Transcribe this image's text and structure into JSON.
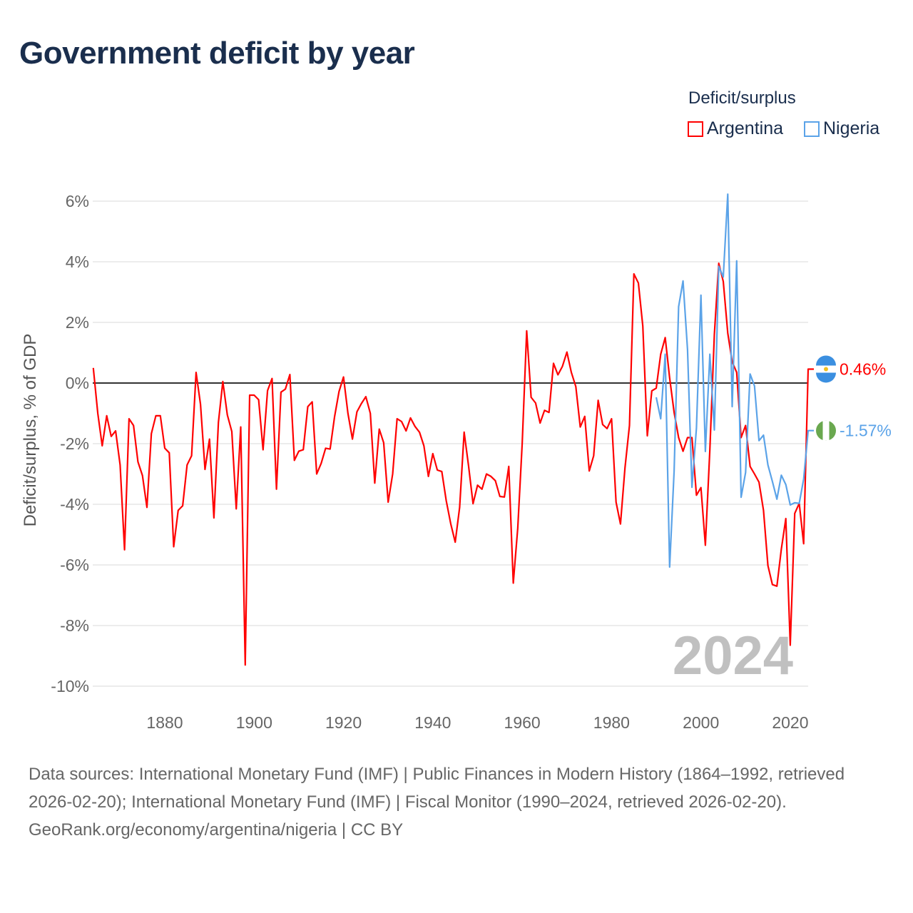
{
  "chart_data": {
    "type": "line",
    "title": "Government deficit by year",
    "xlabel": "",
    "ylabel": "Deficit/surplus, % of GDP",
    "xlim": [
      1864,
      2024
    ],
    "ylim": [
      -10,
      6
    ],
    "x_ticks": [
      1880,
      1900,
      1920,
      1940,
      1960,
      1980,
      2000,
      2020
    ],
    "y_ticks": [
      6,
      4,
      2,
      0,
      -2,
      -4,
      -6,
      -8,
      -10
    ],
    "y_tick_labels": [
      "6%",
      "4%",
      "2%",
      "0%",
      "-2%",
      "-4%",
      "-6%",
      "-8%",
      "-10%"
    ],
    "grid": true,
    "legend_title": "Deficit/surplus",
    "legend_position": "top-right",
    "year_watermark": "2024",
    "series": [
      {
        "name": "Argentina",
        "color": "#ff0000",
        "start_year": 1864,
        "end_label": "0.46%",
        "values": [
          0.5,
          -1.0,
          -2.07,
          -1.08,
          -1.76,
          -1.58,
          -2.7,
          -5.5,
          -1.18,
          -1.4,
          -2.6,
          -3.05,
          -4.1,
          -1.67,
          -1.08,
          -1.08,
          -2.15,
          -2.3,
          -5.4,
          -4.2,
          -4.05,
          -2.7,
          -2.4,
          0.35,
          -0.7,
          -2.85,
          -1.85,
          -4.45,
          -1.3,
          0.05,
          -1.05,
          -1.6,
          -4.15,
          -1.45,
          -9.3,
          -0.4,
          -0.4,
          -0.55,
          -2.2,
          -0.25,
          0.15,
          -3.5,
          -0.3,
          -0.2,
          0.28,
          -2.55,
          -2.25,
          -2.2,
          -0.78,
          -0.62,
          -3.0,
          -2.65,
          -2.15,
          -2.18,
          -1.12,
          -0.28,
          0.2,
          -1.0,
          -1.85,
          -0.95,
          -0.68,
          -0.45,
          -1.0,
          -3.3,
          -1.52,
          -1.97,
          -3.93,
          -3.0,
          -1.18,
          -1.27,
          -1.58,
          -1.15,
          -1.43,
          -1.62,
          -2.07,
          -3.08,
          -2.33,
          -2.87,
          -2.92,
          -3.88,
          -4.64,
          -5.25,
          -4.1,
          -1.62,
          -2.75,
          -3.98,
          -3.37,
          -3.5,
          -3.0,
          -3.08,
          -3.22,
          -3.74,
          -3.76,
          -2.75,
          -6.6,
          -4.78,
          -2.0,
          1.72,
          -0.47,
          -0.66,
          -1.32,
          -0.9,
          -0.97,
          0.65,
          0.27,
          0.55,
          1.02,
          0.35,
          -0.12,
          -1.45,
          -1.1,
          -2.9,
          -2.4,
          -0.57,
          -1.37,
          -1.5,
          -1.18,
          -3.93,
          -4.65,
          -2.8,
          -1.4,
          3.6,
          3.3,
          1.88,
          -1.74,
          -0.26,
          -0.17,
          0.95,
          1.5,
          0.17,
          -0.97,
          -1.8,
          -2.25,
          -1.8,
          -1.8,
          -3.7,
          -3.45,
          -5.35,
          -2.2,
          1.6,
          3.95,
          3.35,
          1.65,
          0.7,
          0.35,
          -1.8,
          -1.4,
          -2.75,
          -3.0,
          -3.27,
          -4.2,
          -6.02,
          -6.65,
          -6.7,
          -5.48,
          -4.47,
          -8.65,
          -4.3,
          -3.97,
          -5.3,
          0.46
        ]
      },
      {
        "name": "Nigeria",
        "color": "#5ba3e8",
        "start_year": 1990,
        "end_label": "-1.57%",
        "values": [
          -0.47,
          -1.18,
          0.95,
          -6.07,
          -2.9,
          2.52,
          3.37,
          1.1,
          -3.44,
          -1.48,
          2.9,
          -2.26,
          0.95,
          -1.55,
          3.85,
          3.5,
          6.23,
          -0.78,
          4.03,
          -3.77,
          -2.95,
          0.3,
          -0.1,
          -1.9,
          -1.72,
          -2.7,
          -3.25,
          -3.83,
          -3.04,
          -3.35,
          -4.02,
          -3.95,
          -3.97,
          -3.17,
          -1.57
        ]
      }
    ]
  },
  "footer": {
    "sources": "Data sources: International Monetary Fund (IMF) | Public Finances in Modern History (1864–1992, retrieved 2026-02-20); International Monetary Fund (IMF) | Fiscal Monitor (1990–2024, retrieved 2026-02-20).",
    "credit": "GeoRank.org/economy/argentina/nigeria | CC BY"
  }
}
